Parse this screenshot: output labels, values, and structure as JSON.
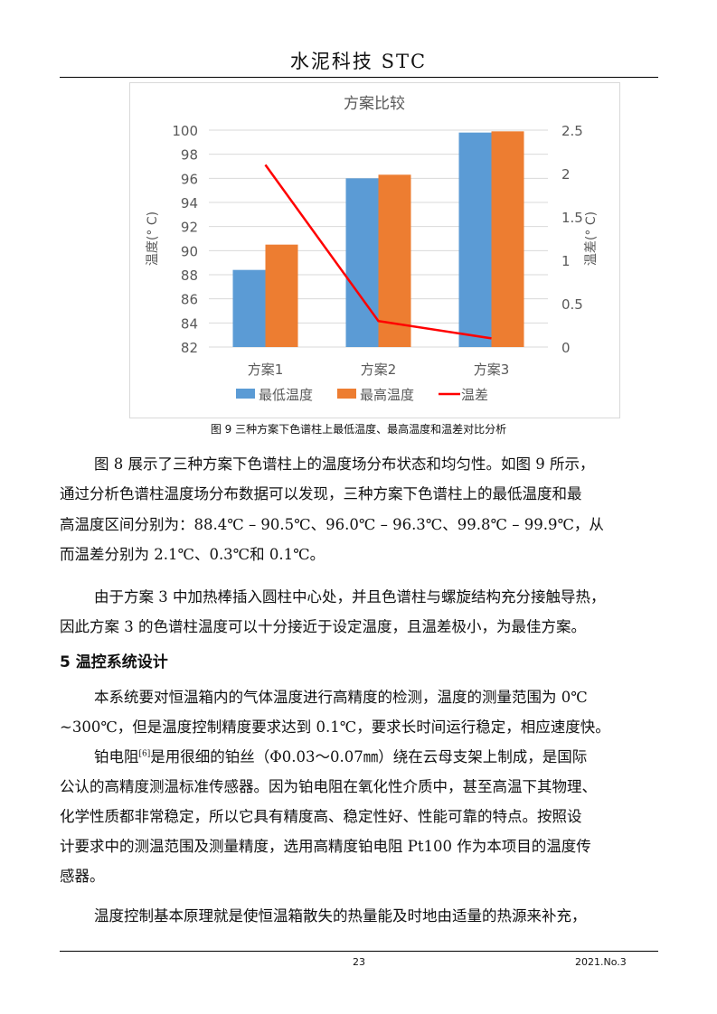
{
  "header": {
    "journal": "水泥科技 STC"
  },
  "chart_data": {
    "type": "bar+line",
    "title": "方案比较",
    "categories": [
      "方案1",
      "方案2",
      "方案3"
    ],
    "series": [
      {
        "name": "最低温度",
        "type": "bar",
        "axis": "left",
        "color": "#5b9bd5",
        "values": [
          88.4,
          96.0,
          99.8
        ]
      },
      {
        "name": "最高温度",
        "type": "bar",
        "axis": "left",
        "color": "#ed7d31",
        "values": [
          90.5,
          96.3,
          99.9
        ]
      },
      {
        "name": "温差",
        "type": "line",
        "axis": "right",
        "color": "#ff0000",
        "values": [
          2.1,
          0.3,
          0.1
        ]
      }
    ],
    "ylabel": "温度(° C)",
    "y2label": "温差(° C)",
    "ylim": [
      82,
      100
    ],
    "yticks": [
      "82",
      "84",
      "86",
      "88",
      "90",
      "92",
      "94",
      "96",
      "98",
      "100"
    ],
    "y2lim": [
      0,
      2.5
    ],
    "y2ticks": [
      "0",
      "0.5",
      "1",
      "1.5",
      "2",
      "2.5"
    ],
    "grid": true,
    "legend": "bottom"
  },
  "caption": "图 9  三种方案下色谱柱上最低温度、最高温度和温差对比分析",
  "lines": [
    "图 8 展示了三种方案下色谱柱上的温度场分布状态和均匀性。如图 9 所示，",
    "通过分析色谱柱温度场分布数据可以发现，三种方案下色谱柱上的最低温度和最",
    "高温度区间分别为：88.4℃ – 90.5℃、96.0℃ – 96.3℃、99.8℃ – 99.9℃，从",
    "而温差分别为 2.1℃、0.3℃和 0.1℃。",
    "由于方案 3 中加热棒插入圆柱中心处，并且色谱柱与螺旋结构充分接触导热，",
    "因此方案 3 的色谱柱温度可以十分接近于设定温度，且温差极小，为最佳方案。"
  ],
  "section": "5   温控系统设计",
  "lines2": [
    "本系统要对恒温箱内的气体温度进行高精度的检测，温度的测量范围为 0℃",
    "~300℃，但是温度控制精度要求达到 0.1℃，要求长时间运行稳定，相应速度快。",
    "铂电阻",
    "[6]",
    "是用很细的铂丝（Φ0.03～0.07㎜）绕在云母支架上制成，是国际",
    "公认的高精度测温标准传感器。因为铂电阻在氧化性介质中，甚至高温下其物理、",
    "化学性质都非常稳定，所以它具有精度高、稳定性好、性能可靠的特点。按照设",
    "计要求中的测温范围及测量精度，选用高精度铂电阻 Pt100 作为本项目的温度传",
    "感器。",
    "温度控制基本原理就是使恒温箱散失的热量能及时地由适量的热源来补充，"
  ],
  "footer": {
    "page": "23",
    "issue": "2021.No.3"
  }
}
